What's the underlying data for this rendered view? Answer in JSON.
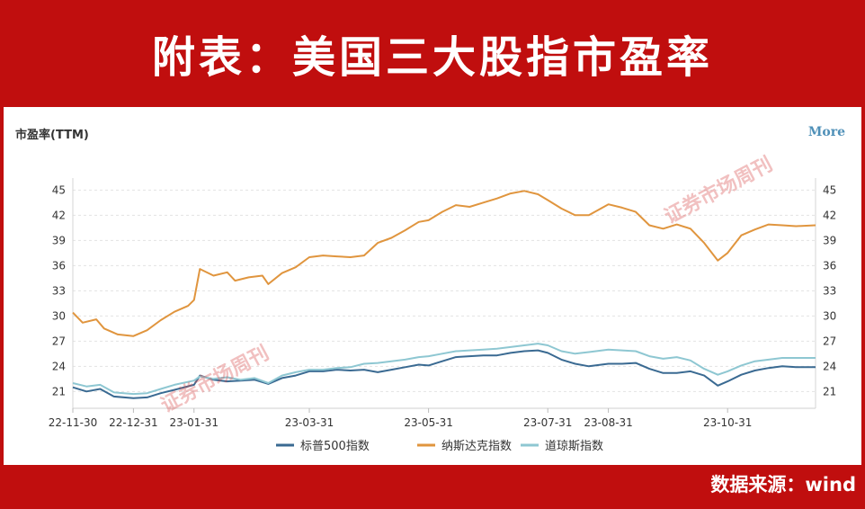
{
  "banner": {
    "title": "附表：美国三大股指市盈率"
  },
  "panel": {
    "title": "市盈率(TTM)",
    "more_label": "More"
  },
  "source": {
    "label": "数据来源：wind"
  },
  "watermark": {
    "text": "证券市场周刊"
  },
  "colors": {
    "sp500": "#3a6a92",
    "nasdaq": "#e0953e",
    "dow": "#8ec7d2",
    "grid": "#e3e3e3",
    "banner": "#c00e0e"
  },
  "chart_data": {
    "type": "line",
    "title": "市盈率(TTM)",
    "xlabel": "",
    "ylabel": "",
    "ylim": [
      19,
      46
    ],
    "y_ticks": [
      21,
      24,
      27,
      30,
      33,
      36,
      39,
      42,
      45
    ],
    "x_ticks": [
      {
        "label": "22-11-30",
        "date": "2022-11-30"
      },
      {
        "label": "22-12-31",
        "date": "2022-12-31"
      },
      {
        "label": "23-01-31",
        "date": "2023-01-31"
      },
      {
        "label": "23-03-31",
        "date": "2023-03-31"
      },
      {
        "label": "23-05-31",
        "date": "2023-05-31"
      },
      {
        "label": "23-07-31",
        "date": "2023-07-31"
      },
      {
        "label": "23-08-31",
        "date": "2023-08-31"
      },
      {
        "label": "23-10-31",
        "date": "2023-10-31"
      }
    ],
    "x_range": [
      "2022-11-30",
      "2023-12-15"
    ],
    "grid": true,
    "legend_position": "bottom",
    "series": [
      {
        "name": "标普500指数",
        "points": [
          [
            "2022-11-30",
            21.5
          ],
          [
            "2022-12-07",
            21.0
          ],
          [
            "2022-12-14",
            21.3
          ],
          [
            "2022-12-21",
            20.4
          ],
          [
            "2022-12-31",
            20.2
          ],
          [
            "2023-01-07",
            20.3
          ],
          [
            "2023-01-14",
            20.8
          ],
          [
            "2023-01-21",
            21.2
          ],
          [
            "2023-01-31",
            21.8
          ],
          [
            "2023-02-03",
            22.9
          ],
          [
            "2023-02-10",
            22.4
          ],
          [
            "2023-02-17",
            22.2
          ],
          [
            "2023-02-24",
            22.3
          ],
          [
            "2023-03-03",
            22.4
          ],
          [
            "2023-03-10",
            21.9
          ],
          [
            "2023-03-17",
            22.6
          ],
          [
            "2023-03-24",
            22.9
          ],
          [
            "2023-03-31",
            23.4
          ],
          [
            "2023-04-07",
            23.4
          ],
          [
            "2023-04-14",
            23.6
          ],
          [
            "2023-04-21",
            23.5
          ],
          [
            "2023-04-28",
            23.6
          ],
          [
            "2023-05-05",
            23.3
          ],
          [
            "2023-05-12",
            23.6
          ],
          [
            "2023-05-19",
            23.9
          ],
          [
            "2023-05-26",
            24.2
          ],
          [
            "2023-05-31",
            24.1
          ],
          [
            "2023-06-07",
            24.6
          ],
          [
            "2023-06-14",
            25.1
          ],
          [
            "2023-06-21",
            25.2
          ],
          [
            "2023-06-28",
            25.3
          ],
          [
            "2023-07-05",
            25.3
          ],
          [
            "2023-07-12",
            25.6
          ],
          [
            "2023-07-19",
            25.8
          ],
          [
            "2023-07-26",
            25.9
          ],
          [
            "2023-07-31",
            25.6
          ],
          [
            "2023-08-07",
            24.8
          ],
          [
            "2023-08-14",
            24.3
          ],
          [
            "2023-08-21",
            24.0
          ],
          [
            "2023-08-31",
            24.3
          ],
          [
            "2023-09-07",
            24.3
          ],
          [
            "2023-09-14",
            24.4
          ],
          [
            "2023-09-21",
            23.7
          ],
          [
            "2023-09-28",
            23.2
          ],
          [
            "2023-10-05",
            23.2
          ],
          [
            "2023-10-12",
            23.4
          ],
          [
            "2023-10-19",
            22.9
          ],
          [
            "2023-10-26",
            21.7
          ],
          [
            "2023-10-31",
            22.2
          ],
          [
            "2023-11-07",
            23.0
          ],
          [
            "2023-11-14",
            23.5
          ],
          [
            "2023-11-21",
            23.8
          ],
          [
            "2023-11-28",
            24.0
          ],
          [
            "2023-12-05",
            23.9
          ],
          [
            "2023-12-15",
            23.9
          ]
        ]
      },
      {
        "name": "纳斯达克指数",
        "points": [
          [
            "2022-11-30",
            30.4
          ],
          [
            "2022-12-05",
            29.2
          ],
          [
            "2022-12-12",
            29.6
          ],
          [
            "2022-12-16",
            28.5
          ],
          [
            "2022-12-23",
            27.8
          ],
          [
            "2022-12-31",
            27.6
          ],
          [
            "2023-01-07",
            28.3
          ],
          [
            "2023-01-14",
            29.5
          ],
          [
            "2023-01-21",
            30.5
          ],
          [
            "2023-01-28",
            31.2
          ],
          [
            "2023-01-31",
            31.9
          ],
          [
            "2023-02-03",
            35.6
          ],
          [
            "2023-02-10",
            34.8
          ],
          [
            "2023-02-17",
            35.2
          ],
          [
            "2023-02-21",
            34.2
          ],
          [
            "2023-02-28",
            34.6
          ],
          [
            "2023-03-07",
            34.8
          ],
          [
            "2023-03-10",
            33.8
          ],
          [
            "2023-03-17",
            35.1
          ],
          [
            "2023-03-24",
            35.8
          ],
          [
            "2023-03-31",
            37.0
          ],
          [
            "2023-04-07",
            37.2
          ],
          [
            "2023-04-14",
            37.1
          ],
          [
            "2023-04-21",
            37.0
          ],
          [
            "2023-04-28",
            37.2
          ],
          [
            "2023-05-05",
            38.7
          ],
          [
            "2023-05-12",
            39.3
          ],
          [
            "2023-05-19",
            40.2
          ],
          [
            "2023-05-26",
            41.2
          ],
          [
            "2023-05-31",
            41.4
          ],
          [
            "2023-06-07",
            42.4
          ],
          [
            "2023-06-14",
            43.2
          ],
          [
            "2023-06-21",
            43.0
          ],
          [
            "2023-06-28",
            43.5
          ],
          [
            "2023-07-05",
            44.0
          ],
          [
            "2023-07-12",
            44.6
          ],
          [
            "2023-07-19",
            44.9
          ],
          [
            "2023-07-26",
            44.5
          ],
          [
            "2023-07-31",
            43.8
          ],
          [
            "2023-08-07",
            42.8
          ],
          [
            "2023-08-14",
            42.0
          ],
          [
            "2023-08-21",
            42.0
          ],
          [
            "2023-08-31",
            43.3
          ],
          [
            "2023-09-07",
            42.9
          ],
          [
            "2023-09-14",
            42.4
          ],
          [
            "2023-09-21",
            40.8
          ],
          [
            "2023-09-28",
            40.4
          ],
          [
            "2023-10-05",
            40.9
          ],
          [
            "2023-10-12",
            40.4
          ],
          [
            "2023-10-19",
            38.7
          ],
          [
            "2023-10-26",
            36.6
          ],
          [
            "2023-10-31",
            37.5
          ],
          [
            "2023-11-07",
            39.6
          ],
          [
            "2023-11-14",
            40.3
          ],
          [
            "2023-11-21",
            40.9
          ],
          [
            "2023-11-28",
            40.8
          ],
          [
            "2023-12-05",
            40.7
          ],
          [
            "2023-12-15",
            40.8
          ]
        ]
      },
      {
        "name": "道琼斯指数",
        "points": [
          [
            "2022-11-30",
            22.0
          ],
          [
            "2022-12-07",
            21.6
          ],
          [
            "2022-12-14",
            21.8
          ],
          [
            "2022-12-21",
            20.9
          ],
          [
            "2022-12-31",
            20.7
          ],
          [
            "2023-01-07",
            20.8
          ],
          [
            "2023-01-14",
            21.3
          ],
          [
            "2023-01-21",
            21.8
          ],
          [
            "2023-01-31",
            22.3
          ],
          [
            "2023-02-03",
            22.8
          ],
          [
            "2023-02-10",
            22.5
          ],
          [
            "2023-02-17",
            22.7
          ],
          [
            "2023-02-24",
            22.4
          ],
          [
            "2023-03-03",
            22.6
          ],
          [
            "2023-03-10",
            22.0
          ],
          [
            "2023-03-17",
            22.9
          ],
          [
            "2023-03-24",
            23.3
          ],
          [
            "2023-03-31",
            23.6
          ],
          [
            "2023-04-07",
            23.6
          ],
          [
            "2023-04-14",
            23.8
          ],
          [
            "2023-04-21",
            23.9
          ],
          [
            "2023-04-28",
            24.3
          ],
          [
            "2023-05-05",
            24.4
          ],
          [
            "2023-05-12",
            24.6
          ],
          [
            "2023-05-19",
            24.8
          ],
          [
            "2023-05-26",
            25.1
          ],
          [
            "2023-05-31",
            25.2
          ],
          [
            "2023-06-07",
            25.5
          ],
          [
            "2023-06-14",
            25.8
          ],
          [
            "2023-06-21",
            25.9
          ],
          [
            "2023-06-28",
            26.0
          ],
          [
            "2023-07-05",
            26.1
          ],
          [
            "2023-07-12",
            26.3
          ],
          [
            "2023-07-19",
            26.5
          ],
          [
            "2023-07-26",
            26.7
          ],
          [
            "2023-07-31",
            26.5
          ],
          [
            "2023-08-07",
            25.8
          ],
          [
            "2023-08-14",
            25.5
          ],
          [
            "2023-08-21",
            25.7
          ],
          [
            "2023-08-31",
            26.0
          ],
          [
            "2023-09-07",
            25.9
          ],
          [
            "2023-09-14",
            25.8
          ],
          [
            "2023-09-21",
            25.2
          ],
          [
            "2023-09-28",
            24.9
          ],
          [
            "2023-10-05",
            25.1
          ],
          [
            "2023-10-12",
            24.7
          ],
          [
            "2023-10-19",
            23.7
          ],
          [
            "2023-10-26",
            23.0
          ],
          [
            "2023-10-31",
            23.4
          ],
          [
            "2023-11-07",
            24.1
          ],
          [
            "2023-11-14",
            24.6
          ],
          [
            "2023-11-21",
            24.8
          ],
          [
            "2023-11-28",
            25.0
          ],
          [
            "2023-12-05",
            25.0
          ],
          [
            "2023-12-15",
            25.0
          ]
        ]
      }
    ]
  }
}
